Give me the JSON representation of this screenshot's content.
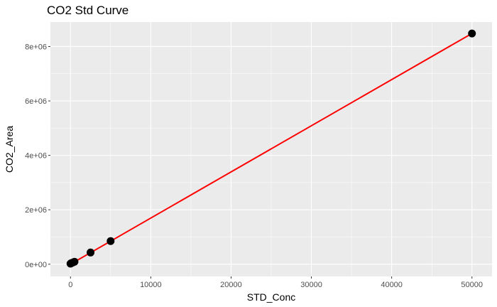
{
  "chart_data": {
    "type": "scatter",
    "title": "CO2 Std Curve",
    "xlabel": "STD_Conc",
    "ylabel": "CO2_Area",
    "xlim": [
      -2500,
      52500
    ],
    "ylim": [
      -450000,
      8900000
    ],
    "x_ticks": [
      0,
      10000,
      20000,
      30000,
      40000,
      50000
    ],
    "x_tick_labels": [
      "0",
      "10000",
      "20000",
      "30000",
      "40000",
      "50000"
    ],
    "y_ticks": [
      0,
      2000000,
      4000000,
      6000000,
      8000000
    ],
    "y_tick_labels": [
      "0e+00",
      "2e+06",
      "4e+06",
      "6e+06",
      "8e+06"
    ],
    "grid": true,
    "series": [
      {
        "x": [
          0,
          100,
          250,
          500,
          2500,
          5000,
          50000
        ],
        "y": [
          20000,
          40000,
          55000,
          90000,
          430000,
          850000,
          8480000
        ],
        "color": "#000000"
      }
    ],
    "fit_line": {
      "x": [
        0,
        50000
      ],
      "y": [
        0,
        8480000
      ],
      "color": "#ff0000"
    },
    "colors": {
      "panel_background": "#ebebeb",
      "grid_major": "#ffffff",
      "points": "#000000",
      "fit_line": "#ff0000"
    }
  }
}
